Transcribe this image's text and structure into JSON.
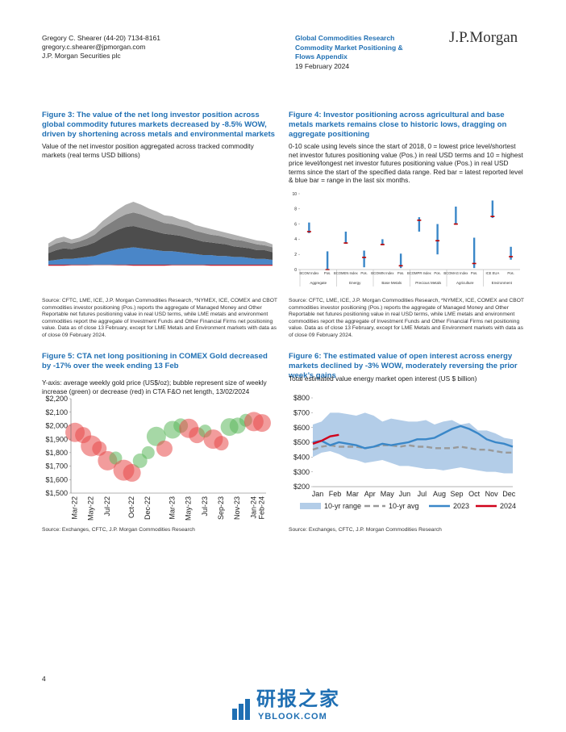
{
  "header": {
    "author": "Gregory C. Shearer (44-20) 7134-8161",
    "email": "gregory.c.shearer@jpmorgan.com",
    "entity": "J.P. Morgan Securities plc",
    "department": "Global Commodities Research",
    "report_title": "Commodity Market Positioning & Flows Appendix",
    "date": "19 February 2024",
    "logo": "J.P.Morgan"
  },
  "figures": [
    {
      "title": "Figure 3: The value of the net long investor position across global commodity futures markets decreased by -8.5% WOW, driven by shortening across metals and environmental markets",
      "subtitle": "Value of the net investor position aggregated across tracked commodity markets (real terms USD billions)",
      "source": "Source: CFTC, LME, ICE, J.P. Morgan Commodities Research, *NYMEX, ICE, COMEX and CBOT commodities investor positioning (Pos.) reports the aggregate of Managed Money and Other Reportable net futures positioning value in real USD terms, while LME metals and environment commodities report the aggregate of Investment Funds and Other Financial Firms net positioning value. Data as of close 13 February, except for LME Metals and Environment markets with data as of close 09 February 2024.",
      "chart_data": {
        "type": "area",
        "ylim": [
          -50,
          400
        ],
        "series": [
          {
            "color": "#4a86c8",
            "values": [
              20,
              25,
              30,
              30,
              35,
              40,
              45,
              60,
              70,
              80,
              85,
              90,
              85,
              80,
              75,
              70,
              70,
              65,
              60,
              55,
              50,
              50,
              45,
              45,
              40,
              40,
              35,
              30,
              30,
              25
            ]
          },
          {
            "color": "#4d4d4d",
            "values": [
              40,
              50,
              55,
              50,
              55,
              60,
              70,
              80,
              90,
              100,
              110,
              110,
              105,
              100,
              95,
              90,
              85,
              85,
              80,
              75,
              70,
              65,
              65,
              60,
              55,
              50,
              50,
              45,
              45,
              40
            ]
          },
          {
            "color": "#7f7f7f",
            "values": [
              30,
              35,
              35,
              30,
              30,
              35,
              40,
              50,
              55,
              60,
              65,
              70,
              70,
              65,
              60,
              55,
              55,
              50,
              50,
              45,
              45,
              40,
              40,
              35,
              35,
              35,
              30,
              30,
              25,
              25
            ]
          },
          {
            "color": "#b0b0b0",
            "values": [
              20,
              25,
              25,
              20,
              20,
              25,
              30,
              35,
              40,
              45,
              50,
              55,
              50,
              45,
              45,
              40,
              40,
              35,
              35,
              30,
              30,
              30,
              25,
              25,
              25,
              20,
              20,
              20,
              20,
              15
            ]
          },
          {
            "color": "#d0021b",
            "values": [
              -5,
              -5,
              -5,
              -3,
              -3,
              -3,
              -2,
              -2,
              -2,
              -3,
              -3,
              -5,
              -5,
              -5,
              -5,
              -5,
              -3,
              -3,
              -3,
              -3,
              -3,
              -5,
              -5,
              -5,
              -5,
              -5,
              -5,
              -5,
              -5,
              -5
            ]
          }
        ]
      }
    },
    {
      "title": "Figure 4: Investor positioning across agricultural and base metals markets remains close to historic lows, dragging on aggregate positioning",
      "subtitle": "0-10 scale using levels since the start of 2018, 0 = lowest price level/shortest net investor futures positioning value (Pos.) in real USD terms and 10 = highest price level/longest net investor futures positioning value (Pos.) in real USD terms since the start of the specified data range. Red bar = latest reported level & blue bar = range in the last six months.",
      "source": "Source: CFTC, LME, ICE, J.P. Morgan Commodities Research, *NYMEX, ICE, COMEX and CBOT commodities investor positioning (Pos.) reports the aggregate of Managed Money and Other Reportable net futures positioning value in real USD terms, while LME metals and environment commodities report the aggregate of Investment Funds and Other Financial Firms net positioning value. Data as of close 13 February, except for LME Metals and Environment markets with data as of close 09 February 2024.",
      "chart_data": {
        "type": "range",
        "ylim": [
          0,
          10
        ],
        "yticks": [
          0,
          2,
          4,
          6,
          8,
          10
        ],
        "range_color": "#3a87c8",
        "latest_color": "#c00000",
        "categories": [
          "BCOM Index",
          "Pos.",
          "BCOMEN Index",
          "Pos.",
          "BCOMIN Index",
          "Pos.",
          "BCOMPR Index",
          "Pos.",
          "BCOMAG Index",
          "Pos.",
          "ICE EUA",
          "Pos."
        ],
        "groups": [
          "Aggregate",
          "Energy",
          "Base Metals",
          "Precious Metals",
          "Agriculture",
          "Environment"
        ],
        "low": [
          4.8,
          0,
          3.4,
          0.3,
          3.2,
          0.2,
          5.0,
          2.0,
          5.9,
          0.2,
          6.8,
          1.3
        ],
        "high": [
          6.2,
          2.4,
          5.0,
          2.5,
          4.0,
          2.1,
          6.9,
          6.0,
          8.3,
          4.2,
          9.1,
          3.0
        ],
        "latest": [
          5.0,
          0,
          3.5,
          1.6,
          3.3,
          0.5,
          6.5,
          3.8,
          6.0,
          0.8,
          7.0,
          1.7
        ]
      }
    },
    {
      "title": "Figure 5: CTA net long positioning in COMEX Gold decreased by -17% over the week ending 13 Feb",
      "subtitle": "Y-axis: average weekly gold price (US$/oz); bubble represent size of weekly increase (green) or decrease (red) in CTA F&O net length, 13/02/2024",
      "source": "Source: Exchanges, CFTC, J.P. Morgan Commodities Research",
      "chart_data": {
        "type": "bubble",
        "ylim": [
          1500,
          2200
        ],
        "yticks": [
          {
            "value": 1500,
            "label": "$1,500"
          },
          {
            "value": 1600,
            "label": "$1,600"
          },
          {
            "value": 1700,
            "label": "$1,700"
          },
          {
            "value": 1800,
            "label": "$1,800"
          },
          {
            "value": 1900,
            "label": "$1,900"
          },
          {
            "value": 2000,
            "label": "$2,000"
          },
          {
            "value": 2100,
            "label": "$2,100"
          },
          {
            "value": 2200,
            "label": "$2,200"
          }
        ],
        "categories": [
          "Mar-22",
          null,
          "May-22",
          null,
          "Jul-22",
          null,
          null,
          "Oct-22",
          null,
          "Dec-22",
          null,
          null,
          "Mar-23",
          null,
          "May-23",
          null,
          "Jul-23",
          null,
          "Sep-23",
          null,
          "Nov-23",
          null,
          "Jan-24",
          "Feb-24"
        ],
        "values": [
          1950,
          1930,
          1850,
          1830,
          1740,
          1760,
          1670,
          1650,
          1740,
          1800,
          1920,
          1830,
          1970,
          2000,
          1980,
          1930,
          1960,
          1900,
          1870,
          1990,
          2000,
          2040,
          2030,
          2020
        ],
        "sizes": [
          12,
          10,
          13,
          9,
          12,
          8,
          13,
          11,
          9,
          8,
          12,
          10,
          11,
          9,
          12,
          10,
          8,
          12,
          9,
          11,
          10,
          8,
          12,
          11
        ],
        "colors": [
          "#e84a4a",
          "#e84a4a",
          "#e84a4a",
          "#e84a4a",
          "#e84a4a",
          "#5cb85c",
          "#e84a4a",
          "#e84a4a",
          "#5cb85c",
          "#5cb85c",
          "#5cb85c",
          "#e84a4a",
          "#5cb85c",
          "#5cb85c",
          "#e84a4a",
          "#e84a4a",
          "#5cb85c",
          "#e84a4a",
          "#e84a4a",
          "#5cb85c",
          "#5cb85c",
          "#5cb85c",
          "#e84a4a",
          "#e84a4a"
        ]
      }
    },
    {
      "title": "Figure 6: The estimated value of open interest across energy markets declined by -3% WOW, moderately reversing the prior week’s gains",
      "subtitle": "Total estimated value energy market open interest (US $ billion)",
      "source": "Source: Exchanges, CFTC, J.P. Morgan Commodities Research",
      "chart_data": {
        "type": "line",
        "ylim": [
          200,
          800
        ],
        "yticks": [
          {
            "value": 200,
            "label": "$200"
          },
          {
            "value": 300,
            "label": "$300"
          },
          {
            "value": 400,
            "label": "$400"
          },
          {
            "value": 500,
            "label": "$500"
          },
          {
            "value": 600,
            "label": "$600"
          },
          {
            "value": 700,
            "label": "$700"
          },
          {
            "value": 800,
            "label": "$800"
          }
        ],
        "categories": [
          "Jan",
          null,
          "Feb",
          null,
          "Mar",
          null,
          "Apr",
          null,
          "May",
          null,
          "Jun",
          null,
          "Jul",
          null,
          "Aug",
          null,
          "Sep",
          null,
          "Oct",
          null,
          "Nov",
          null,
          "Dec",
          null
        ],
        "band": {
          "name": "10-yr range",
          "color": "#b3cde8",
          "low": [
            400,
            430,
            440,
            420,
            390,
            380,
            360,
            370,
            380,
            360,
            340,
            340,
            330,
            320,
            320,
            310,
            320,
            330,
            320,
            310,
            300,
            300,
            290,
            290
          ],
          "high": [
            620,
            640,
            700,
            700,
            690,
            680,
            700,
            680,
            640,
            660,
            650,
            640,
            640,
            650,
            620,
            640,
            650,
            620,
            630,
            580,
            580,
            560,
            530,
            520
          ]
        },
        "series": [
          {
            "name": "10-yr avg",
            "color": "#999999",
            "dashed": true,
            "values": [
              450,
              470,
              480,
              470,
              470,
              470,
              460,
              470,
              480,
              480,
              470,
              480,
              470,
              470,
              460,
              460,
              460,
              470,
              460,
              450,
              450,
              440,
              430,
              430
            ]
          },
          {
            "name": "2023",
            "color": "#3a87c8",
            "dashed": false,
            "values": [
              500,
              510,
              480,
              500,
              490,
              480,
              460,
              470,
              490,
              480,
              490,
              500,
              520,
              520,
              530,
              560,
              590,
              610,
              590,
              560,
              520,
              500,
              490,
              470
            ]
          },
          {
            "name": "2024",
            "color": "#d0021b",
            "dashed": false,
            "values": [
              490,
              510,
              540,
              550,
              null,
              null,
              null,
              null,
              null,
              null,
              null,
              null,
              null,
              null,
              null,
              null,
              null,
              null,
              null,
              null,
              null,
              null,
              null,
              null
            ]
          }
        ]
      }
    }
  ],
  "footer": {
    "page": "4",
    "watermark_cn": "研报之家",
    "watermark_url": "YBLOOK.COM"
  }
}
